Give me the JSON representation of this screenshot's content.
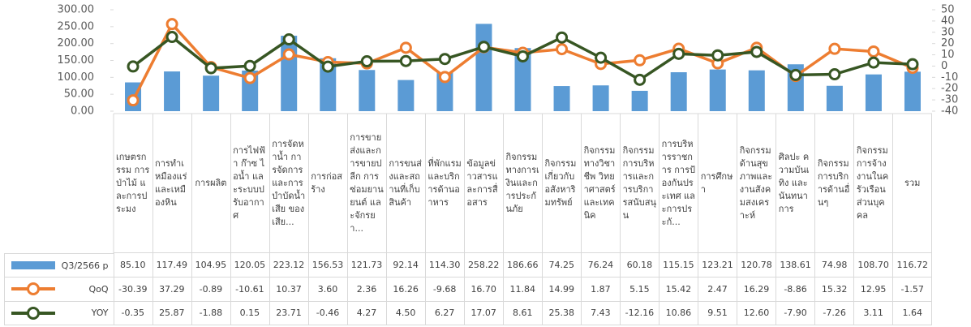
{
  "chart_data": {
    "type": "bar_line_table",
    "categories": [
      "เกษตรกรรม การป่าไม้ และการประมง",
      "การทำเหมืองแร่และเหมืองหิน",
      "การผลิต",
      "การไฟฟ้า ก๊าซ ไอน้ำ และระบบปรับอากาศ",
      "การจัดหาน้ำ การจัดการและการบำบัดน้ำเสีย ของเสีย...",
      "การก่อสร้าง",
      "การขายส่งและการขายปลีก การซ่อมยานยนต์ และจักรยา...",
      "การขนส่งและสถานที่เก็บสินค้า",
      "ที่พักแรมและบริการด้านอาหาร",
      "ข้อมูลข่าวสารและการสื่อสาร",
      "กิจกรรมทางการเงินและการประกันภัย",
      "กิจกรรมเกี่ยวกับอสังหาริมทรัพย์",
      "กิจกรรมทางวิชาชีพ วิทยาศาสตร์ และเทคนิค",
      "กิจกรรมการบริหารและการบริการสนับสนุน",
      "การบริหารราชการ การป้องกันประเทศ และการประกั...",
      "การศึกษา",
      "กิจกรรมด้านสุขภาพและงานสังคมสงเคราะห์",
      "ศิลปะ ความบันเทิง และนันทนาการ",
      "กิจกรรมการบริการด้านอื่นๆ",
      "กิจกรรมการจ้างงานในครัวเรือนส่วนบุคคล",
      "รวม"
    ],
    "series": [
      {
        "name": "Q3/2566 p",
        "color": "#5b9bd5",
        "kind": "bar",
        "axis": "y",
        "values": [
          85.1,
          117.49,
          104.95,
          120.05,
          223.12,
          156.53,
          121.73,
          92.14,
          114.3,
          258.22,
          186.66,
          74.25,
          76.24,
          60.18,
          115.15,
          123.21,
          120.78,
          138.61,
          74.98,
          108.7,
          116.72
        ],
        "value_labels": [
          "85.10",
          "117.49",
          "104.95",
          "120.05",
          "223.12",
          "156.53",
          "121.73",
          "92.14",
          "114.30",
          "258.22",
          "186.66",
          "74.25",
          "76.24",
          "60.18",
          "115.15",
          "123.21",
          "120.78",
          "138.61",
          "74.98",
          "108.70",
          "116.72"
        ]
      },
      {
        "name": "QoQ",
        "color": "#ed7d31",
        "kind": "line",
        "axis": "y2",
        "values": [
          -30.39,
          37.29,
          -0.89,
          -10.61,
          10.37,
          3.6,
          2.36,
          16.26,
          -9.68,
          16.7,
          11.84,
          14.99,
          1.87,
          5.15,
          15.42,
          2.47,
          16.29,
          -8.86,
          15.32,
          12.95,
          -1.57
        ],
        "value_labels": [
          "-30.39",
          "37.29",
          "-0.89",
          "-10.61",
          "10.37",
          "3.60",
          "2.36",
          "16.26",
          "-9.68",
          "16.70",
          "11.84",
          "14.99",
          "1.87",
          "5.15",
          "15.42",
          "2.47",
          "16.29",
          "-8.86",
          "15.32",
          "12.95",
          "-1.57"
        ]
      },
      {
        "name": "YOY",
        "color": "#375623",
        "kind": "line",
        "axis": "y2",
        "values": [
          -0.35,
          25.87,
          -1.88,
          0.15,
          23.71,
          -0.46,
          4.27,
          4.5,
          6.27,
          17.07,
          8.61,
          25.38,
          7.43,
          -12.16,
          10.86,
          9.51,
          12.6,
          -7.9,
          -7.26,
          3.11,
          1.64
        ],
        "value_labels": [
          "-0.35",
          "25.87",
          "-1.88",
          "0.15",
          "23.71",
          "-0.46",
          "4.27",
          "4.50",
          "6.27",
          "17.07",
          "8.61",
          "25.38",
          "7.43",
          "-12.16",
          "10.86",
          "9.51",
          "12.60",
          "-7.90",
          "-7.26",
          "3.11",
          "1.64"
        ]
      }
    ],
    "ylim": [
      0,
      300
    ],
    "yticks": [
      {
        "value": 0,
        "label": "0.00"
      },
      {
        "value": 50,
        "label": "50.00"
      },
      {
        "value": 100,
        "label": "100.00"
      },
      {
        "value": 150,
        "label": "150.00"
      },
      {
        "value": 200,
        "label": "200.00"
      },
      {
        "value": 250,
        "label": "250.00"
      },
      {
        "value": 300,
        "label": "300.00"
      }
    ],
    "y2lim": [
      -40,
      50
    ],
    "y2ticks": [
      -40,
      -30,
      -20,
      -10,
      0,
      10,
      20,
      30,
      40,
      50
    ]
  }
}
